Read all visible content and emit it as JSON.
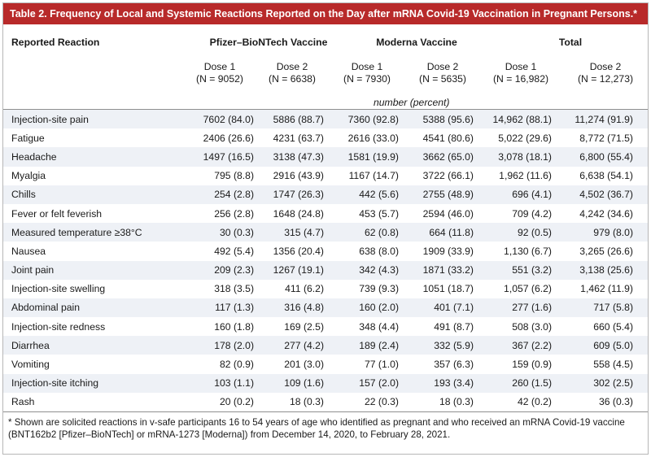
{
  "table": {
    "title": "Table 2. Frequency of Local and Systemic Reactions Reported on the Day after mRNA Covid-19 Vaccination in Pregnant Persons.*",
    "row_header": "Reported Reaction",
    "groups": [
      "Pfizer–BioNTech Vaccine",
      "Moderna Vaccine",
      "Total"
    ],
    "doses": [
      {
        "label": "Dose 1",
        "n": "(N = 9052)"
      },
      {
        "label": "Dose 2",
        "n": "(N = 6638)"
      },
      {
        "label": "Dose 1",
        "n": "(N = 7930)"
      },
      {
        "label": "Dose 2",
        "n": "(N = 5635)"
      },
      {
        "label": "Dose 1",
        "n": "(N = 16,982)"
      },
      {
        "label": "Dose 2",
        "n": "(N = 12,273)"
      }
    ],
    "unit": "number (percent)",
    "rows": [
      {
        "label": "Injection-site pain",
        "cells": [
          "7602 (84.0)",
          "5886 (88.7)",
          "7360 (92.8)",
          "5388 (95.6)",
          "14,962 (88.1)",
          "11,274 (91.9)"
        ]
      },
      {
        "label": "Fatigue",
        "cells": [
          "2406 (26.6)",
          "4231 (63.7)",
          "2616 (33.0)",
          "4541 (80.6)",
          "5,022 (29.6)",
          "8,772 (71.5)"
        ]
      },
      {
        "label": "Headache",
        "cells": [
          "1497 (16.5)",
          "3138 (47.3)",
          "1581 (19.9)",
          "3662 (65.0)",
          "3,078 (18.1)",
          "6,800 (55.4)"
        ]
      },
      {
        "label": "Myalgia",
        "cells": [
          "795 (8.8)",
          "2916 (43.9)",
          "1167 (14.7)",
          "3722 (66.1)",
          "1,962 (11.6)",
          "6,638 (54.1)"
        ]
      },
      {
        "label": "Chills",
        "cells": [
          "254 (2.8)",
          "1747 (26.3)",
          "442 (5.6)",
          "2755 (48.9)",
          "696 (4.1)",
          "4,502 (36.7)"
        ]
      },
      {
        "label": "Fever or felt feverish",
        "cells": [
          "256 (2.8)",
          "1648 (24.8)",
          "453 (5.7)",
          "2594 (46.0)",
          "709 (4.2)",
          "4,242 (34.6)"
        ]
      },
      {
        "label": "Measured temperature ≥38°C",
        "cells": [
          "30 (0.3)",
          "315 (4.7)",
          "62 (0.8)",
          "664 (11.8)",
          "92 (0.5)",
          "979 (8.0)"
        ]
      },
      {
        "label": "Nausea",
        "cells": [
          "492 (5.4)",
          "1356 (20.4)",
          "638 (8.0)",
          "1909 (33.9)",
          "1,130 (6.7)",
          "3,265 (26.6)"
        ]
      },
      {
        "label": "Joint pain",
        "cells": [
          "209 (2.3)",
          "1267 (19.1)",
          "342 (4.3)",
          "1871 (33.2)",
          "551 (3.2)",
          "3,138 (25.6)"
        ]
      },
      {
        "label": "Injection-site swelling",
        "cells": [
          "318 (3.5)",
          "411 (6.2)",
          "739 (9.3)",
          "1051 (18.7)",
          "1,057 (6.2)",
          "1,462 (11.9)"
        ]
      },
      {
        "label": "Abdominal pain",
        "cells": [
          "117 (1.3)",
          "316 (4.8)",
          "160 (2.0)",
          "401 (7.1)",
          "277 (1.6)",
          "717 (5.8)"
        ]
      },
      {
        "label": "Injection-site redness",
        "cells": [
          "160 (1.8)",
          "169 (2.5)",
          "348 (4.4)",
          "491 (8.7)",
          "508 (3.0)",
          "660 (5.4)"
        ]
      },
      {
        "label": "Diarrhea",
        "cells": [
          "178 (2.0)",
          "277 (4.2)",
          "189 (2.4)",
          "332 (5.9)",
          "367 (2.2)",
          "609 (5.0)"
        ]
      },
      {
        "label": "Vomiting",
        "cells": [
          "82 (0.9)",
          "201 (3.0)",
          "77 (1.0)",
          "357 (6.3)",
          "159 (0.9)",
          "558 (4.5)"
        ]
      },
      {
        "label": "Injection-site itching",
        "cells": [
          "103 (1.1)",
          "109 (1.6)",
          "157 (2.0)",
          "193 (3.4)",
          "260 (1.5)",
          "302 (2.5)"
        ]
      },
      {
        "label": "Rash",
        "cells": [
          "20 (0.2)",
          "18 (0.3)",
          "22 (0.3)",
          "18 (0.3)",
          "42 (0.2)",
          "36 (0.3)"
        ]
      }
    ],
    "footnote": "* Shown are solicited reactions in v-safe participants 16 to 54 years of age who identified as pregnant and who received an mRNA Covid-19 vaccine (BNT162b2 [Pfizer–BioNTech] or mRNA-1273 [Moderna]) from December 14, 2020, to February 28, 2021."
  },
  "colors": {
    "title_bar": "#b82a2a",
    "row_shade": "#eef1f6",
    "rule": "#8f8f8f"
  }
}
